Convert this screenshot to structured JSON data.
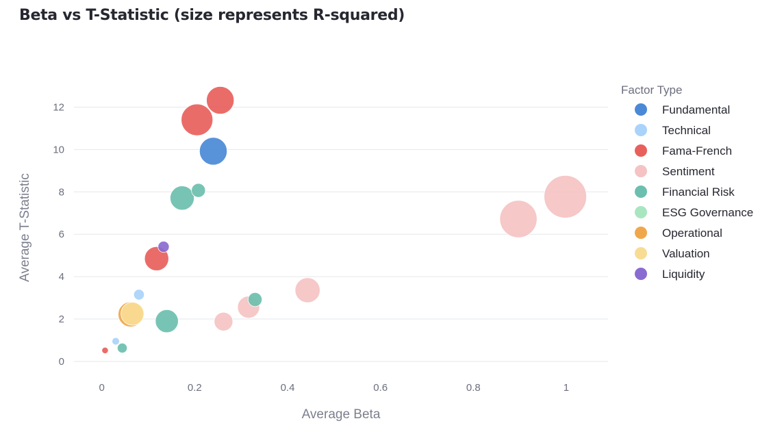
{
  "chart_data": {
    "type": "scatter",
    "title": "Beta vs T-Statistic (size represents R-squared)",
    "xlabel": "Average Beta",
    "ylabel": "Average T-Statistic",
    "xlim": [
      -0.06,
      1.09
    ],
    "ylim": [
      -0.55,
      13.5
    ],
    "xticks": [
      0,
      0.2,
      0.4,
      0.6,
      0.8,
      1
    ],
    "xtick_labels": [
      "0",
      "0.2",
      "0.4",
      "0.6",
      "0.8",
      "1"
    ],
    "yticks": [
      0,
      2,
      4,
      6,
      8,
      10,
      12
    ],
    "ytick_labels": [
      "0",
      "2",
      "4",
      "6",
      "8",
      "10",
      "12"
    ],
    "grid": true,
    "legend_title": "Factor Type",
    "legend_position": "right",
    "size_encodes": "R-squared",
    "series": [
      {
        "name": "Fundamental",
        "color": "#4a89d6",
        "points": [
          {
            "x": 0.24,
            "y": 9.92,
            "size": 0.55
          }
        ]
      },
      {
        "name": "Technical",
        "color": "#a9d3fa",
        "points": [
          {
            "x": 0.08,
            "y": 3.15,
            "size": 0.08
          },
          {
            "x": 0.03,
            "y": 0.95,
            "size": 0.04
          }
        ]
      },
      {
        "name": "Fama-French",
        "color": "#e8605c",
        "points": [
          {
            "x": 0.255,
            "y": 12.32,
            "size": 0.55
          },
          {
            "x": 0.205,
            "y": 11.4,
            "size": 0.72
          },
          {
            "x": 0.118,
            "y": 4.85,
            "size": 0.42
          },
          {
            "x": 0.007,
            "y": 0.52,
            "size": 0.03
          }
        ]
      },
      {
        "name": "Sentiment",
        "color": "#f5c3c3",
        "points": [
          {
            "x": 0.998,
            "y": 7.77,
            "size": 1.3
          },
          {
            "x": 0.897,
            "y": 6.72,
            "size": 1.0
          },
          {
            "x": 0.443,
            "y": 3.36,
            "size": 0.45
          },
          {
            "x": 0.316,
            "y": 2.56,
            "size": 0.35
          },
          {
            "x": 0.262,
            "y": 1.88,
            "size": 0.25
          }
        ]
      },
      {
        "name": "Financial Risk",
        "color": "#6cbfae",
        "points": [
          {
            "x": 0.173,
            "y": 7.71,
            "size": 0.42
          },
          {
            "x": 0.208,
            "y": 8.07,
            "size": 0.14
          },
          {
            "x": 0.14,
            "y": 1.9,
            "size": 0.38
          },
          {
            "x": 0.33,
            "y": 2.92,
            "size": 0.14
          },
          {
            "x": 0.044,
            "y": 0.63,
            "size": 0.07
          }
        ]
      },
      {
        "name": "ESG Governance",
        "color": "#a8e6c0",
        "points": []
      },
      {
        "name": "Operational",
        "color": "#f0a74c",
        "points": [
          {
            "x": 0.062,
            "y": 2.22,
            "size": 0.45
          }
        ]
      },
      {
        "name": "Valuation",
        "color": "#f8dc94",
        "points": [
          {
            "x": 0.066,
            "y": 2.25,
            "size": 0.38
          }
        ]
      },
      {
        "name": "Liquidity",
        "color": "#8a6bd1",
        "points": [
          {
            "x": 0.133,
            "y": 5.41,
            "size": 0.09
          }
        ]
      }
    ]
  }
}
